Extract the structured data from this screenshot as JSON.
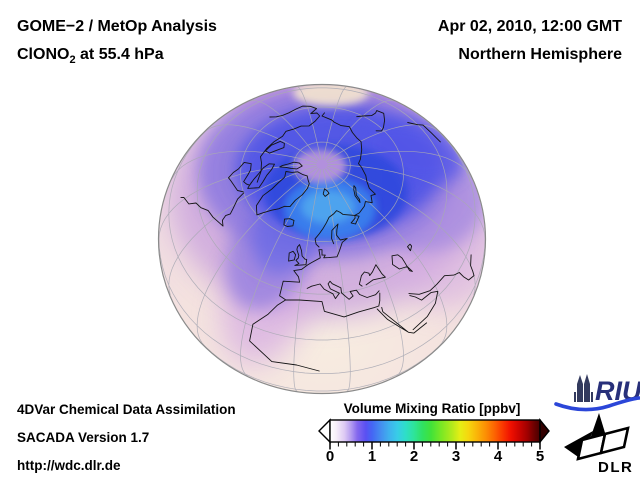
{
  "header": {
    "left_line1": "GOME−2 / MetOp Analysis",
    "left_line2_prefix": "ClONO",
    "left_line2_sub": "2",
    "left_line2_suffix": " at 55.4 hPa",
    "right_line1": "Apr 02, 2010, 12:00 GMT",
    "right_line2": "Northern Hemisphere"
  },
  "footer": {
    "line1": "4DVar Chemical Data Assimilation",
    "line2": "SACADA Version 1.7",
    "line3": "http://wdc.dlr.de"
  },
  "colorbar": {
    "title": "Volume Mixing Ratio [ppbv]",
    "tick_labels": [
      "0",
      "1",
      "2",
      "3",
      "4",
      "5"
    ],
    "min": 0,
    "max": 5,
    "left_arrow_color": "#ffffff",
    "right_arrow_color": "#330000",
    "gradient": [
      [
        "0%",
        "#ffffff"
      ],
      [
        "3%",
        "#f6eef8"
      ],
      [
        "7%",
        "#dcc8f4"
      ],
      [
        "10%",
        "#b49cf0"
      ],
      [
        "13%",
        "#8468ee"
      ],
      [
        "17%",
        "#5a50f2"
      ],
      [
        "20%",
        "#4466f4"
      ],
      [
        "24%",
        "#448cf0"
      ],
      [
        "28%",
        "#3fb0ee"
      ],
      [
        "32%",
        "#38cce8"
      ],
      [
        "36%",
        "#2edec8"
      ],
      [
        "40%",
        "#2ee49a"
      ],
      [
        "44%",
        "#30e262"
      ],
      [
        "48%",
        "#40e23a"
      ],
      [
        "53%",
        "#7ae824"
      ],
      [
        "58%",
        "#b2ea1c"
      ],
      [
        "62%",
        "#e6ee14"
      ],
      [
        "66%",
        "#f6d60e"
      ],
      [
        "70%",
        "#fab408"
      ],
      [
        "74%",
        "#fc9004"
      ],
      [
        "78%",
        "#fc6802"
      ],
      [
        "82%",
        "#fa3a00"
      ],
      [
        "86%",
        "#f01000"
      ],
      [
        "90%",
        "#cc0400"
      ],
      [
        "94%",
        "#a00000"
      ],
      [
        "97%",
        "#700000"
      ],
      [
        "100%",
        "#480000"
      ]
    ]
  },
  "logos": {
    "riu_text": "RIU",
    "dlr_text": "DLR",
    "riu_color": "#28307a",
    "riu_swoosh_color": "#2b46d8",
    "dlr_color": "#000000"
  },
  "chart_data": {
    "type": "heatmap",
    "title": "GOME−2 / MetOp Analysis — ClONO2 at 55.4 hPa",
    "datetime": "Apr 02, 2010, 12:00 GMT",
    "region": "Northern Hemisphere",
    "projection": "orthographic globe centered near 61N 10E, North Pole above center",
    "colorbar": {
      "label": "Volume Mixing Ratio [ppbv]",
      "range": [
        0,
        5
      ],
      "ticks": [
        0,
        1,
        2,
        3,
        4,
        5
      ],
      "minor_tick_step": 0.2
    },
    "field_summary": [
      {
        "area": "subtropical outer limb (Africa, Arabia, low latitudes)",
        "approx_value_ppbv": 0.1
      },
      {
        "area": "mid-latitude pink/lavender band (Europe, Atlantic, Asia)",
        "approx_value_ppbv": 0.4
      },
      {
        "area": "high-latitude violet-blue band (Canada, Siberia, polar cap)",
        "approx_value_ppbv": 0.8
      },
      {
        "area": "bright blue maximum near Greenland Sea / Scandinavia",
        "approx_value_ppbv": 1.2
      },
      {
        "area": "pale spot over Bering / pole vicinity",
        "approx_value_ppbv": 0.2
      }
    ],
    "grid": "graticule every 20 degrees, gray; coastlines black"
  }
}
